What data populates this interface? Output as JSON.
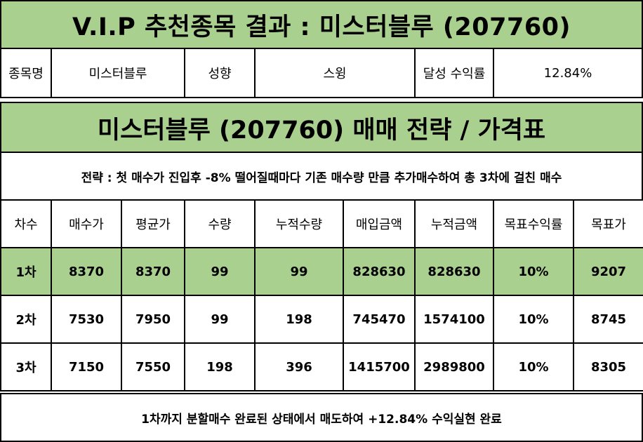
{
  "header": {
    "title": "V.I.P 추천종목 결과 : 미스터블루 (207760)"
  },
  "info": {
    "stock_label": "종목명",
    "stock_value": "미스터블루",
    "style_label": "성향",
    "style_value": "스윙",
    "return_label": "달성 수익률",
    "return_value": "12.84%"
  },
  "section": {
    "title": "미스터블루 (207760) 매매 전략 / 가격표"
  },
  "strategy": {
    "text": "전략 : 첫 매수가 진입후 -8% 떨어질때마다 기존 매수량 만큼 추가매수하여 총 3차에 걸친 매수"
  },
  "table": {
    "headers": [
      "차수",
      "매수가",
      "평균가",
      "수량",
      "누적수량",
      "매입금액",
      "누적금액",
      "목표수익률",
      "목표가"
    ],
    "rows": [
      [
        "1차",
        "8370",
        "8370",
        "99",
        "99",
        "828630",
        "828630",
        "10%",
        "9207"
      ],
      [
        "2차",
        "7530",
        "7950",
        "99",
        "198",
        "745470",
        "1574100",
        "10%",
        "8745"
      ],
      [
        "3차",
        "7150",
        "7550",
        "198",
        "396",
        "1415700",
        "2989800",
        "10%",
        "8305"
      ]
    ]
  },
  "footer": {
    "text": "1차까지 분할매수 완료된 상태에서 매도하여 +12.84% 수익실현 완료"
  },
  "colors": {
    "highlight": "#a9d08e",
    "border": "#000000"
  }
}
